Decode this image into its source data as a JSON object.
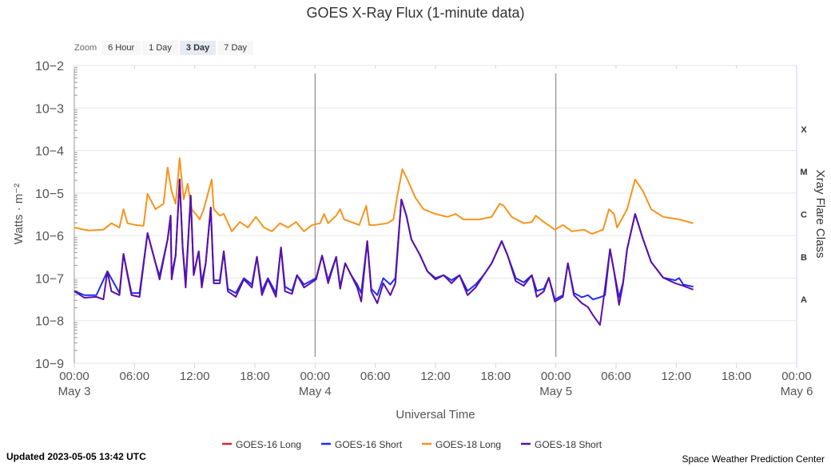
{
  "chart_data": {
    "type": "line",
    "title": "GOES X-Ray Flux (1-minute data)",
    "xlabel": "Universal Time",
    "ylabel": "Watts · m⁻²",
    "ylabel_right": "Xray Flare Class",
    "x_unit": "hours since 2023-05-03 00:00 UTC",
    "xlim": [
      0,
      72
    ],
    "ylim_log10": [
      -9,
      -2
    ],
    "y_ticks": [
      "10−2",
      "10−3",
      "10−4",
      "10−5",
      "10−6",
      "10−7",
      "10−8",
      "10−9"
    ],
    "x_ticks": [
      {
        "h": 0,
        "t": "00:00",
        "d": "May 3"
      },
      {
        "h": 6,
        "t": "06:00",
        "d": ""
      },
      {
        "h": 12,
        "t": "12:00",
        "d": ""
      },
      {
        "h": 18,
        "t": "18:00",
        "d": ""
      },
      {
        "h": 24,
        "t": "00:00",
        "d": "May 4"
      },
      {
        "h": 30,
        "t": "06:00",
        "d": ""
      },
      {
        "h": 36,
        "t": "12:00",
        "d": ""
      },
      {
        "h": 42,
        "t": "18:00",
        "d": ""
      },
      {
        "h": 48,
        "t": "00:00",
        "d": "May 5"
      },
      {
        "h": 54,
        "t": "06:00",
        "d": ""
      },
      {
        "h": 60,
        "t": "12:00",
        "d": ""
      },
      {
        "h": 66,
        "t": "18:00",
        "d": ""
      },
      {
        "h": 72,
        "t": "00:00",
        "d": "May 6"
      }
    ],
    "flare_classes": [
      {
        "c": "X",
        "lo": -4
      },
      {
        "c": "M",
        "lo": -5
      },
      {
        "c": "C",
        "lo": -6
      },
      {
        "c": "B",
        "lo": -7
      },
      {
        "c": "A",
        "lo": -8
      }
    ],
    "legend_position": "bottom-center",
    "series": [
      {
        "name": "GOES-16 Long",
        "color": "#e8202a",
        "points": []
      },
      {
        "name": "GOES-16 Short",
        "color": "#1f2cf0",
        "points": [
          [
            0,
            -7.3
          ],
          [
            1,
            -7.4
          ],
          [
            2.2,
            -7.4
          ],
          [
            3.3,
            -6.84
          ],
          [
            4.5,
            -7.35
          ],
          [
            4.9,
            -6.43
          ],
          [
            5.3,
            -6.9
          ],
          [
            5.7,
            -7.35
          ],
          [
            6.5,
            -7.35
          ],
          [
            7.3,
            -5.94
          ],
          [
            8.1,
            -6.65
          ],
          [
            8.5,
            -6.95
          ],
          [
            9.3,
            -6.09
          ],
          [
            9.6,
            -5.53
          ],
          [
            9.7,
            -6.9
          ],
          [
            10.1,
            -6.47
          ],
          [
            10.5,
            -4.68
          ],
          [
            10.8,
            -6.28
          ],
          [
            11.1,
            -7.1
          ],
          [
            11.6,
            -5.06
          ],
          [
            11.9,
            -6.9
          ],
          [
            12.4,
            -6.37
          ],
          [
            12.7,
            -7.1
          ],
          [
            13.1,
            -6.65
          ],
          [
            13.6,
            -5.34
          ],
          [
            13.9,
            -7.05
          ],
          [
            14.5,
            -7.05
          ],
          [
            14.9,
            -6.37
          ],
          [
            15.3,
            -7.25
          ],
          [
            16.1,
            -7.35
          ],
          [
            16.9,
            -7.0
          ],
          [
            17.7,
            -7.15
          ],
          [
            18.2,
            -6.5
          ],
          [
            18.7,
            -7.3
          ],
          [
            19.3,
            -7.0
          ],
          [
            20.1,
            -7.35
          ],
          [
            20.6,
            -6.28
          ],
          [
            21,
            -7.2
          ],
          [
            21.7,
            -7.3
          ],
          [
            22.2,
            -6.93
          ],
          [
            22.9,
            -7.15
          ],
          [
            24.1,
            -7.0
          ],
          [
            24.7,
            -6.47
          ],
          [
            25.3,
            -7.05
          ],
          [
            26.1,
            -6.5
          ],
          [
            26.5,
            -7.2
          ],
          [
            27,
            -6.65
          ],
          [
            27.6,
            -6.93
          ],
          [
            28.2,
            -7.15
          ],
          [
            28.6,
            -7.35
          ],
          [
            29.2,
            -6.13
          ],
          [
            29.6,
            -7.25
          ],
          [
            30.2,
            -7.4
          ],
          [
            30.8,
            -7.0
          ],
          [
            31.5,
            -7.15
          ],
          [
            32,
            -7.0
          ],
          [
            32.6,
            -5.15
          ],
          [
            33.1,
            -5.53
          ],
          [
            33.6,
            -6.09
          ],
          [
            34.4,
            -6.43
          ],
          [
            35.2,
            -6.84
          ],
          [
            36,
            -7.0
          ],
          [
            36.8,
            -6.93
          ],
          [
            37.6,
            -7.05
          ],
          [
            38.4,
            -6.93
          ],
          [
            39.2,
            -7.3
          ],
          [
            40,
            -7.15
          ],
          [
            40.8,
            -6.93
          ],
          [
            41.6,
            -6.65
          ],
          [
            42.6,
            -6.13
          ],
          [
            43.2,
            -6.47
          ],
          [
            44,
            -7.0
          ],
          [
            44.8,
            -7.1
          ],
          [
            45.6,
            -6.93
          ],
          [
            46.1,
            -7.3
          ],
          [
            46.8,
            -7.25
          ],
          [
            47.3,
            -6.99
          ],
          [
            47.9,
            -7.5
          ],
          [
            48.7,
            -7.4
          ],
          [
            49.2,
            -6.65
          ],
          [
            49.8,
            -7.35
          ],
          [
            50.6,
            -7.45
          ],
          [
            51.2,
            -7.4
          ],
          [
            51.7,
            -7.5
          ],
          [
            52.4,
            -7.45
          ],
          [
            52.9,
            -7.4
          ],
          [
            53.4,
            -6.32
          ],
          [
            53.8,
            -6.84
          ],
          [
            54.3,
            -7.45
          ],
          [
            54.7,
            -7.1
          ],
          [
            55.1,
            -6.32
          ],
          [
            55.9,
            -5.49
          ],
          [
            56.7,
            -6.09
          ],
          [
            57.5,
            -6.62
          ],
          [
            58.7,
            -6.99
          ],
          [
            59.9,
            -7.05
          ],
          [
            60.3,
            -7.0
          ],
          [
            60.7,
            -7.15
          ],
          [
            61.7,
            -7.2
          ]
        ]
      },
      {
        "name": "GOES-18 Long",
        "color": "#f7941d",
        "points": [
          [
            0,
            -5.81
          ],
          [
            1.4,
            -5.88
          ],
          [
            2.9,
            -5.86
          ],
          [
            3.7,
            -5.71
          ],
          [
            4.5,
            -5.81
          ],
          [
            4.9,
            -5.38
          ],
          [
            5.3,
            -5.71
          ],
          [
            6.1,
            -5.75
          ],
          [
            6.9,
            -5.77
          ],
          [
            7.3,
            -5.02
          ],
          [
            8.1,
            -5.38
          ],
          [
            8.9,
            -5.25
          ],
          [
            9.3,
            -4.4
          ],
          [
            9.7,
            -4.96
          ],
          [
            10.1,
            -5.25
          ],
          [
            10.5,
            -4.18
          ],
          [
            10.9,
            -5.15
          ],
          [
            11.3,
            -4.78
          ],
          [
            11.7,
            -5.38
          ],
          [
            12.1,
            -5.49
          ],
          [
            12.5,
            -5.62
          ],
          [
            12.9,
            -5.38
          ],
          [
            13.7,
            -4.68
          ],
          [
            13.9,
            -5.38
          ],
          [
            14.5,
            -5.53
          ],
          [
            14.9,
            -5.49
          ],
          [
            15.7,
            -5.9
          ],
          [
            16.5,
            -5.68
          ],
          [
            17.3,
            -5.81
          ],
          [
            18.1,
            -5.56
          ],
          [
            18.9,
            -5.81
          ],
          [
            19.7,
            -5.9
          ],
          [
            20.5,
            -5.71
          ],
          [
            21.3,
            -5.81
          ],
          [
            22.1,
            -5.68
          ],
          [
            22.9,
            -5.9
          ],
          [
            23.7,
            -5.75
          ],
          [
            24.5,
            -5.71
          ],
          [
            24.9,
            -5.49
          ],
          [
            25.3,
            -5.71
          ],
          [
            26.1,
            -5.53
          ],
          [
            26.5,
            -5.38
          ],
          [
            26.9,
            -5.62
          ],
          [
            27.6,
            -5.68
          ],
          [
            28.4,
            -5.75
          ],
          [
            29.1,
            -5.3
          ],
          [
            29.4,
            -5.75
          ],
          [
            30,
            -5.75
          ],
          [
            31.2,
            -5.71
          ],
          [
            31.8,
            -5.62
          ],
          [
            32.2,
            -5.06
          ],
          [
            32.7,
            -4.44
          ],
          [
            33.2,
            -4.68
          ],
          [
            34,
            -5.11
          ],
          [
            34.8,
            -5.38
          ],
          [
            36,
            -5.49
          ],
          [
            37.2,
            -5.56
          ],
          [
            38,
            -5.49
          ],
          [
            38.8,
            -5.62
          ],
          [
            40.4,
            -5.62
          ],
          [
            41.6,
            -5.56
          ],
          [
            42.4,
            -5.25
          ],
          [
            42.8,
            -5.3
          ],
          [
            43.6,
            -5.56
          ],
          [
            44.8,
            -5.71
          ],
          [
            45.6,
            -5.68
          ],
          [
            46,
            -5.53
          ],
          [
            46.8,
            -5.68
          ],
          [
            47.9,
            -5.86
          ],
          [
            48.7,
            -5.75
          ],
          [
            49.6,
            -5.9
          ],
          [
            50.8,
            -5.86
          ],
          [
            51.6,
            -5.96
          ],
          [
            52.7,
            -5.86
          ],
          [
            53.3,
            -5.38
          ],
          [
            53.8,
            -5.49
          ],
          [
            54.1,
            -5.81
          ],
          [
            55.1,
            -5.38
          ],
          [
            55.9,
            -4.68
          ],
          [
            56.7,
            -4.96
          ],
          [
            57.5,
            -5.38
          ],
          [
            58.7,
            -5.56
          ],
          [
            60.3,
            -5.62
          ],
          [
            61.7,
            -5.71
          ]
        ]
      },
      {
        "name": "GOES-18 Short",
        "color": "#5b0fa8",
        "points": [
          [
            0,
            -7.31
          ],
          [
            1,
            -7.46
          ],
          [
            2.2,
            -7.44
          ],
          [
            2.9,
            -7.5
          ],
          [
            3.3,
            -6.84
          ],
          [
            3.7,
            -7.31
          ],
          [
            4.5,
            -7.4
          ],
          [
            4.9,
            -6.43
          ],
          [
            5.3,
            -6.93
          ],
          [
            5.7,
            -7.4
          ],
          [
            6.5,
            -7.44
          ],
          [
            7.3,
            -5.94
          ],
          [
            8.1,
            -6.65
          ],
          [
            8.5,
            -7.03
          ],
          [
            9.3,
            -6.09
          ],
          [
            9.6,
            -5.53
          ],
          [
            9.7,
            -7.03
          ],
          [
            10.1,
            -6.47
          ],
          [
            10.5,
            -4.68
          ],
          [
            10.8,
            -6.28
          ],
          [
            11.1,
            -7.22
          ],
          [
            11.6,
            -5.06
          ],
          [
            11.9,
            -6.93
          ],
          [
            12.4,
            -6.37
          ],
          [
            12.7,
            -7.22
          ],
          [
            13.1,
            -6.65
          ],
          [
            13.6,
            -5.34
          ],
          [
            13.9,
            -7.12
          ],
          [
            14.5,
            -7.12
          ],
          [
            14.9,
            -6.37
          ],
          [
            15.3,
            -7.31
          ],
          [
            16.1,
            -7.44
          ],
          [
            16.9,
            -7.03
          ],
          [
            17.7,
            -7.22
          ],
          [
            18.2,
            -6.5
          ],
          [
            18.7,
            -7.4
          ],
          [
            19.3,
            -7.03
          ],
          [
            20.1,
            -7.44
          ],
          [
            20.6,
            -6.28
          ],
          [
            21,
            -7.31
          ],
          [
            21.7,
            -7.37
          ],
          [
            22.2,
            -6.93
          ],
          [
            22.9,
            -7.22
          ],
          [
            24.1,
            -7.03
          ],
          [
            24.7,
            -6.47
          ],
          [
            25.3,
            -7.12
          ],
          [
            26.1,
            -6.5
          ],
          [
            26.5,
            -7.25
          ],
          [
            27,
            -6.65
          ],
          [
            27.6,
            -6.93
          ],
          [
            28.2,
            -7.22
          ],
          [
            28.6,
            -7.55
          ],
          [
            29.2,
            -6.13
          ],
          [
            29.6,
            -7.31
          ],
          [
            30.2,
            -7.59
          ],
          [
            30.8,
            -7.12
          ],
          [
            31.5,
            -7.4
          ],
          [
            32,
            -7.12
          ],
          [
            32.6,
            -5.15
          ],
          [
            33.1,
            -5.53
          ],
          [
            33.6,
            -6.09
          ],
          [
            34.4,
            -6.43
          ],
          [
            35.2,
            -6.84
          ],
          [
            36,
            -7.03
          ],
          [
            36.8,
            -6.93
          ],
          [
            37.6,
            -7.12
          ],
          [
            38.4,
            -6.93
          ],
          [
            39.2,
            -7.4
          ],
          [
            40,
            -7.22
          ],
          [
            40.8,
            -6.93
          ],
          [
            41.6,
            -6.65
          ],
          [
            42.6,
            -6.13
          ],
          [
            43.2,
            -6.47
          ],
          [
            44,
            -7.07
          ],
          [
            44.8,
            -7.18
          ],
          [
            45.6,
            -6.93
          ],
          [
            46.1,
            -7.44
          ],
          [
            46.8,
            -7.31
          ],
          [
            47.3,
            -6.99
          ],
          [
            47.9,
            -7.55
          ],
          [
            48.7,
            -7.44
          ],
          [
            49.2,
            -6.65
          ],
          [
            49.8,
            -7.4
          ],
          [
            50.6,
            -7.59
          ],
          [
            51.2,
            -7.68
          ],
          [
            51.7,
            -7.87
          ],
          [
            52.4,
            -8.1
          ],
          [
            52.7,
            -7.59
          ],
          [
            53.4,
            -6.32
          ],
          [
            53.8,
            -6.84
          ],
          [
            54.3,
            -7.63
          ],
          [
            54.7,
            -7.12
          ],
          [
            55.1,
            -6.32
          ],
          [
            55.9,
            -5.49
          ],
          [
            56.7,
            -6.09
          ],
          [
            57.5,
            -6.62
          ],
          [
            58.7,
            -6.99
          ],
          [
            59.9,
            -7.12
          ],
          [
            60.7,
            -7.18
          ],
          [
            61.7,
            -7.27
          ]
        ]
      }
    ]
  },
  "zoom": {
    "label": "Zoom",
    "buttons": [
      "6 Hour",
      "1 Day",
      "3 Day",
      "7 Day"
    ],
    "selected": "3 Day"
  },
  "footer": {
    "updated": "Updated 2023-05-05 13:42 UTC",
    "credit": "Space Weather Prediction Center"
  }
}
